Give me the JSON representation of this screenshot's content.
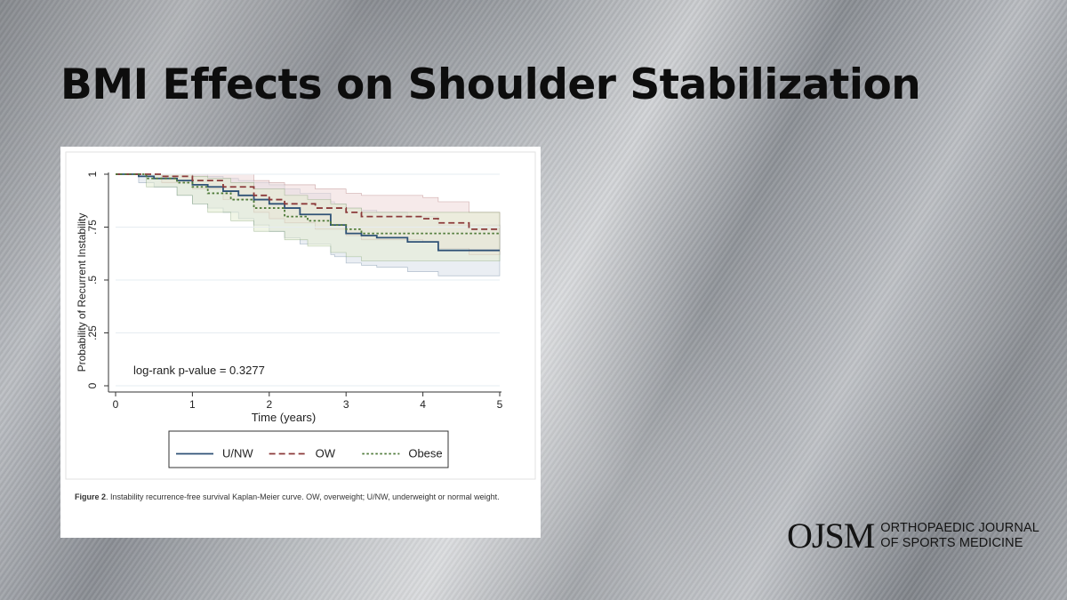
{
  "slide": {
    "title": "BMI Effects on Shoulder Stabilization"
  },
  "figure": {
    "caption_label": "Figure 2",
    "caption_text": ". Instability recurrence-free survival Kaplan-Meier curve. OW, overweight; U/NW, underweight or normal weight."
  },
  "logo": {
    "mark": "OJSM",
    "line1": "ORTHOPAEDIC JOURNAL",
    "line2": "OF SPORTS MEDICINE"
  },
  "chart_data": {
    "type": "line",
    "subtype": "kaplan-meier-step",
    "xlabel": "Time (years)",
    "ylabel": "Probability of Recurrent Instability",
    "xlim": [
      0,
      5
    ],
    "ylim": [
      0,
      1
    ],
    "xticks": [
      0,
      1,
      2,
      3,
      4,
      5
    ],
    "yticks": [
      0,
      0.25,
      0.5,
      0.75,
      1
    ],
    "ytick_labels": [
      "0",
      ".25",
      ".5",
      ".75",
      "1"
    ],
    "grid": true,
    "annotation": "log-rank p-value = 0.3277",
    "legend_position": "bottom",
    "series": [
      {
        "name": "U/NW",
        "color": "#2f5276",
        "dash": "solid",
        "band_color": "#d8e0ea",
        "x": [
          0,
          0.3,
          0.5,
          0.8,
          1.0,
          1.2,
          1.4,
          1.6,
          1.8,
          2.0,
          2.2,
          2.4,
          2.8,
          2.85,
          3.0,
          3.2,
          3.4,
          3.8,
          4.2,
          5.0
        ],
        "y": [
          1.0,
          0.99,
          0.98,
          0.97,
          0.95,
          0.94,
          0.92,
          0.9,
          0.88,
          0.86,
          0.84,
          0.81,
          0.76,
          0.76,
          0.72,
          0.71,
          0.7,
          0.68,
          0.64,
          0.64
        ],
        "lower": [
          1.0,
          0.96,
          0.94,
          0.9,
          0.86,
          0.84,
          0.82,
          0.79,
          0.76,
          0.73,
          0.7,
          0.67,
          0.62,
          0.61,
          0.58,
          0.57,
          0.56,
          0.54,
          0.52,
          0.52
        ],
        "upper": [
          1.0,
          1.0,
          1.0,
          1.0,
          1.0,
          0.99,
          0.98,
          0.97,
          0.96,
          0.95,
          0.93,
          0.91,
          0.87,
          0.86,
          0.84,
          0.83,
          0.82,
          0.8,
          0.76,
          0.76
        ]
      },
      {
        "name": "OW",
        "color": "#8b3a3a",
        "dash": "dashed",
        "band_color": "#eed8d8",
        "x": [
          0,
          0.6,
          1.0,
          1.4,
          1.8,
          2.0,
          2.2,
          2.6,
          3.0,
          3.2,
          4.0,
          4.2,
          4.6,
          5.0
        ],
        "y": [
          1.0,
          0.99,
          0.97,
          0.94,
          0.9,
          0.88,
          0.86,
          0.84,
          0.82,
          0.8,
          0.79,
          0.77,
          0.74,
          0.74
        ],
        "lower": [
          1.0,
          0.96,
          0.93,
          0.88,
          0.82,
          0.79,
          0.77,
          0.74,
          0.71,
          0.69,
          0.68,
          0.65,
          0.62,
          0.62
        ],
        "upper": [
          1.0,
          1.0,
          1.0,
          1.0,
          0.97,
          0.96,
          0.95,
          0.93,
          0.91,
          0.9,
          0.89,
          0.87,
          0.82,
          0.82
        ]
      },
      {
        "name": "Obese",
        "color": "#4e7a38",
        "dash": "dotted",
        "band_color": "#e4ecd2",
        "x": [
          0,
          0.4,
          0.8,
          1.0,
          1.2,
          1.5,
          1.8,
          2.2,
          2.5,
          2.8,
          3.0,
          3.2,
          5.0
        ],
        "y": [
          1.0,
          0.98,
          0.96,
          0.94,
          0.91,
          0.88,
          0.84,
          0.8,
          0.78,
          0.76,
          0.74,
          0.72,
          0.72
        ],
        "lower": [
          1.0,
          0.94,
          0.9,
          0.86,
          0.82,
          0.78,
          0.73,
          0.69,
          0.66,
          0.63,
          0.61,
          0.59,
          0.59
        ],
        "upper": [
          1.0,
          1.0,
          1.0,
          0.99,
          0.98,
          0.96,
          0.93,
          0.9,
          0.88,
          0.86,
          0.84,
          0.82,
          0.82
        ]
      }
    ]
  }
}
